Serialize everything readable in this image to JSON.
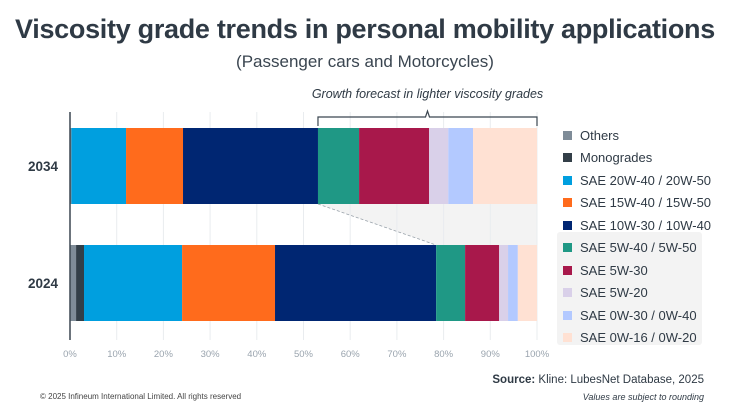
{
  "header": {
    "title": "Viscosity grade trends in personal mobility applications",
    "subtitle": "(Passenger cars and Motorcycles)"
  },
  "chart_data": {
    "type": "bar",
    "orientation": "horizontal",
    "stacked": true,
    "title": "Viscosity grade trends in personal mobility applications",
    "subtitle": "(Passenger cars and Motorcycles)",
    "xlabel": "",
    "ylabel": "",
    "xlim": [
      0,
      100
    ],
    "x_ticks": [
      "0%",
      "10%",
      "20%",
      "30%",
      "40%",
      "50%",
      "60%",
      "70%",
      "80%",
      "90%",
      "100%"
    ],
    "grid": true,
    "legend_position": "right",
    "categories": [
      "2034",
      "2024"
    ],
    "series": [
      {
        "name": "Others",
        "color": "#7f8c98",
        "values": [
          0.3,
          1.3
        ]
      },
      {
        "name": "Monogrades",
        "color": "#333f48",
        "values": [
          0.0,
          1.7
        ]
      },
      {
        "name": "SAE 20W-40 / 20W-50",
        "color": "#009fdf",
        "values": [
          11.7,
          21.0
        ]
      },
      {
        "name": "SAE 15W-40 / 15W-50",
        "color": "#ff6b1c",
        "values": [
          12.2,
          19.9
        ]
      },
      {
        "name": "SAE 10W-30 / 10W-40",
        "color": "#002672",
        "values": [
          28.9,
          34.5
        ]
      },
      {
        "name": "SAE 5W-40 / 5W-50",
        "color": "#1f9885",
        "values": [
          8.8,
          6.2
        ]
      },
      {
        "name": "SAE 5W-30",
        "color": "#a8184b",
        "values": [
          15.0,
          7.3
        ]
      },
      {
        "name": "SAE 5W-20",
        "color": "#d9d0e9",
        "values": [
          4.1,
          1.9
        ]
      },
      {
        "name": "SAE 0W-30 / 0W-40",
        "color": "#b3c9ff",
        "values": [
          5.3,
          2.1
        ]
      },
      {
        "name": "SAE 0W-16 / 0W-20",
        "color": "#ffe1d3",
        "values": [
          13.7,
          4.1
        ]
      }
    ],
    "annotations": [
      {
        "text": "Growth forecast in lighter viscosity grades",
        "spans_series_from": "SAE 5W-40 / 5W-50",
        "category": "2034"
      }
    ]
  },
  "footer": {
    "source_label": "Source:",
    "source_text": " Kline: LubesNet Database, 2025",
    "note": "Values are subject to rounding",
    "copyright": "© 2025 Infineum International Limited. All rights reserved"
  }
}
